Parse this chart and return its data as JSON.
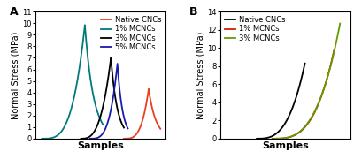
{
  "panel_A": {
    "label": "A",
    "ylabel": "Normal Stress (MPa)",
    "xlabel": "Samples",
    "ylim": [
      0,
      11
    ],
    "yticks": [
      0,
      1,
      2,
      3,
      4,
      5,
      6,
      7,
      8,
      9,
      10,
      11
    ],
    "legend": [
      "Native CNCs",
      "1% MCNCs",
      "3% MCNCs",
      "5% MCNCs"
    ],
    "colors": [
      "#e8401c",
      "#007b7b",
      "#000000",
      "#1a1ab0"
    ]
  },
  "panel_B": {
    "label": "B",
    "ylabel": "Normal Stress (MPa)",
    "xlabel": "Samples",
    "ylim": [
      0,
      14
    ],
    "yticks": [
      0,
      2,
      4,
      6,
      8,
      10,
      12,
      14
    ],
    "legend": [
      "Native CNCs",
      "1% MCNCs",
      "3% MCNCs"
    ],
    "colors": [
      "#000000",
      "#cc2200",
      "#669900"
    ]
  },
  "background_color": "#ffffff",
  "axes_color": "#d0d0d0",
  "tick_fontsize": 6,
  "label_fontsize": 7,
  "legend_fontsize": 6.0
}
